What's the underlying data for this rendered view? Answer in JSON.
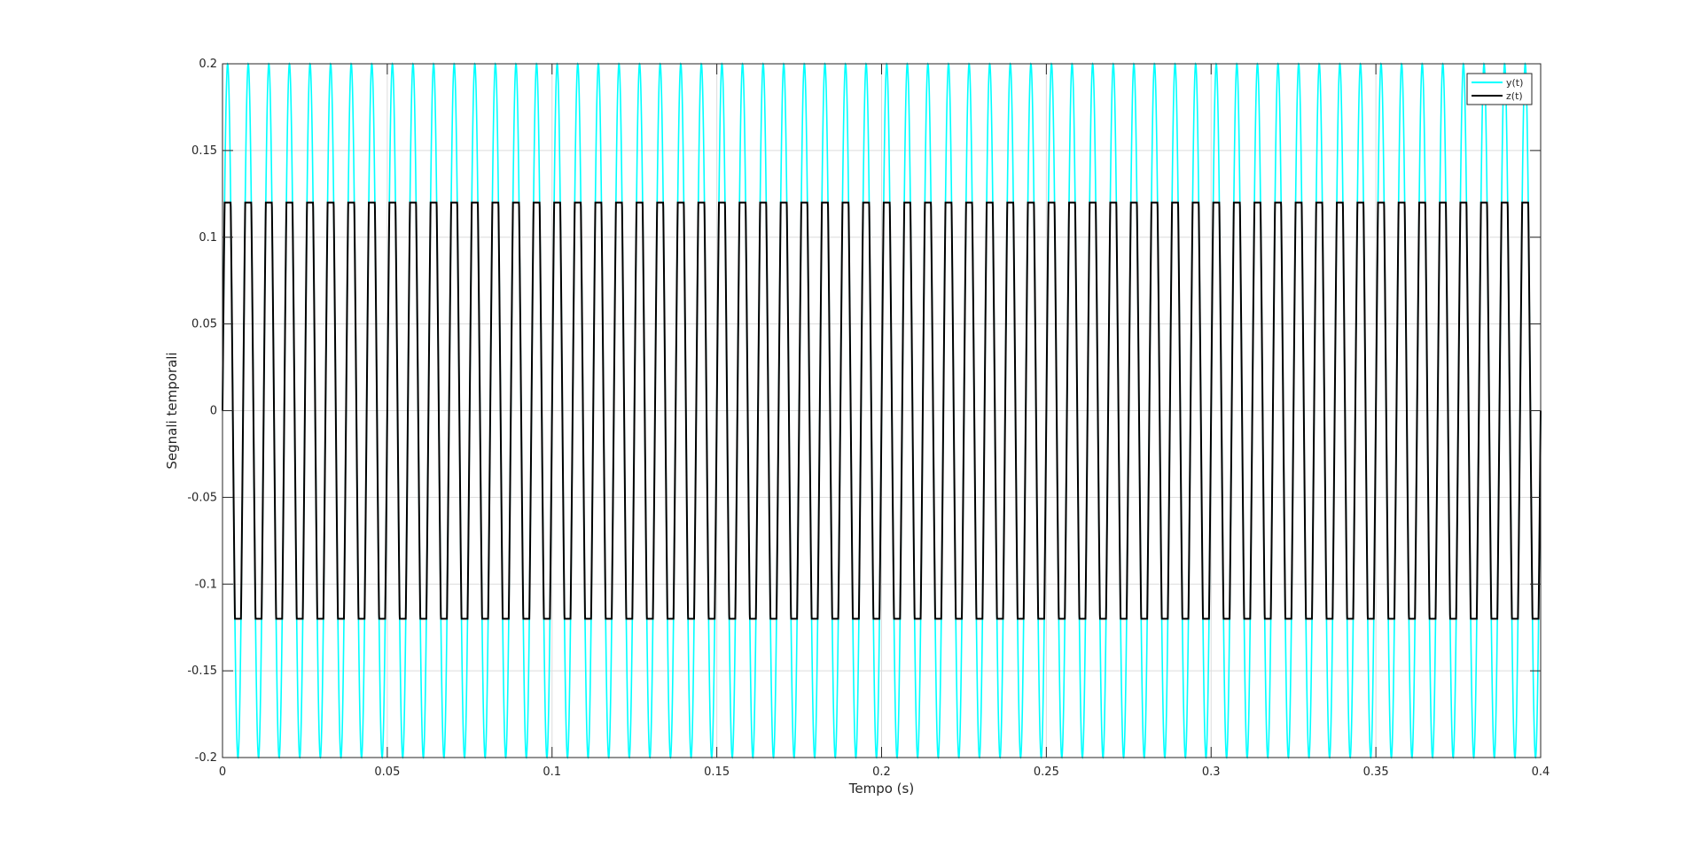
{
  "chart_data": {
    "type": "line",
    "title": "",
    "xlabel": "Tempo (s)",
    "ylabel": "Segnali temporali",
    "xlim": [
      0,
      0.4
    ],
    "ylim": [
      -0.2,
      0.2
    ],
    "xticks": [
      "0",
      "0.05",
      "0.1",
      "0.15",
      "0.2",
      "0.25",
      "0.3",
      "0.35",
      "0.4"
    ],
    "yticks": [
      "-0.2",
      "-0.15",
      "-0.1",
      "-0.05",
      "0",
      "0.05",
      "0.1",
      "0.15",
      "0.2"
    ],
    "grid": true,
    "legend_position": "top-right",
    "series": [
      {
        "name": "y(t)",
        "color": "#00FFFF",
        "shape": "sinusoid",
        "amplitude": 0.2,
        "frequency_hz": 160
      },
      {
        "name": "z(t)",
        "color": "#000000",
        "shape": "clipped sinusoid",
        "amplitude": 0.2,
        "frequency_hz": 160,
        "clip_level": 0.12
      }
    ]
  }
}
